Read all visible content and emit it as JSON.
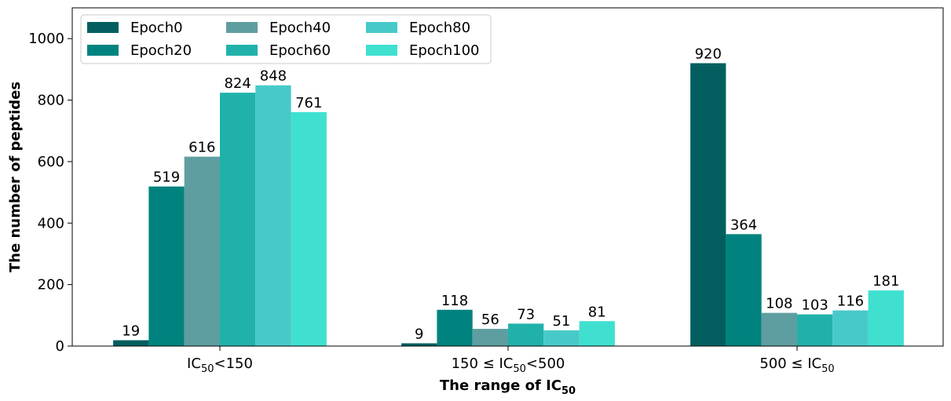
{
  "chart_data": {
    "type": "bar",
    "title": "",
    "xlabel": "The range of IC",
    "xlabel_sub": "50",
    "ylabel": "The number of peptides",
    "ylim": [
      0,
      1100
    ],
    "yticks": [
      0,
      200,
      400,
      600,
      800,
      1000
    ],
    "grid": false,
    "legend_position": "top-left",
    "categories": [
      {
        "pre": "IC",
        "sub": "50",
        "post": "<150"
      },
      {
        "pre": "150 ≤ IC",
        "sub": "50",
        "post": "<500"
      },
      {
        "pre": "500 ≤ IC",
        "sub": "50",
        "post": ""
      }
    ],
    "series": [
      {
        "name": "Epoch0",
        "color": "#035f5f",
        "values": [
          19,
          9,
          920
        ]
      },
      {
        "name": "Epoch20",
        "color": "#00837e",
        "values": [
          519,
          118,
          364
        ]
      },
      {
        "name": "Epoch40",
        "color": "#5f9ea0",
        "values": [
          616,
          56,
          108
        ]
      },
      {
        "name": "Epoch60",
        "color": "#20b2aa",
        "values": [
          824,
          73,
          103
        ]
      },
      {
        "name": "Epoch80",
        "color": "#48c9c9",
        "values": [
          848,
          51,
          116
        ]
      },
      {
        "name": "Epoch100",
        "color": "#40e0d0",
        "values": [
          761,
          81,
          181
        ]
      }
    ]
  }
}
